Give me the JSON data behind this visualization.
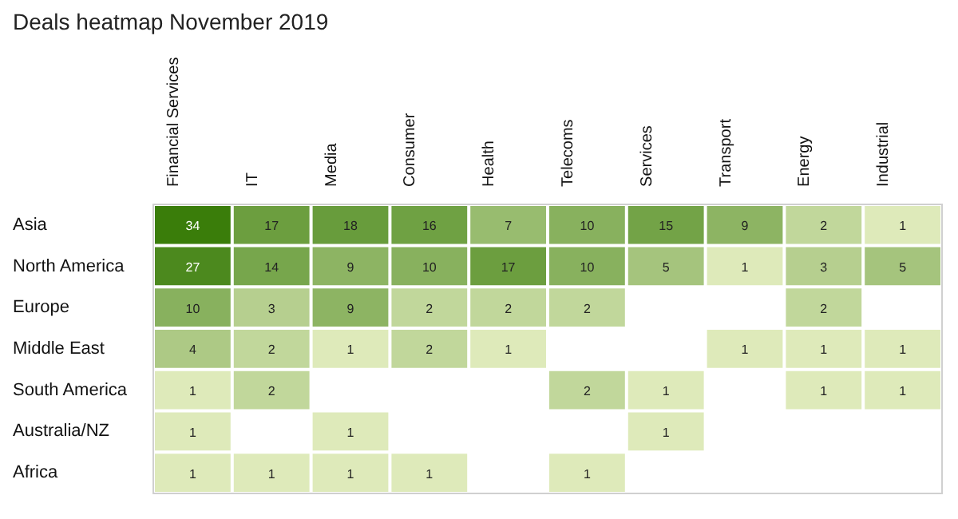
{
  "chart_data": {
    "type": "heatmap",
    "title": "Deals heatmap November 2019",
    "categories": [
      "Financial Services",
      "IT",
      "Media",
      "Consumer",
      "Health",
      "Telecoms",
      "Services",
      "Transport",
      "Energy",
      "Industrial"
    ],
    "y_categories": [
      "Asia",
      "North America",
      "Europe",
      "Middle East",
      "South America",
      "Australia/NZ",
      "Africa"
    ],
    "cells": [
      [
        34,
        17,
        18,
        16,
        7,
        10,
        15,
        9,
        2,
        1
      ],
      [
        27,
        14,
        9,
        10,
        17,
        10,
        5,
        1,
        3,
        5
      ],
      [
        10,
        3,
        9,
        2,
        2,
        2,
        null,
        null,
        2,
        null
      ],
      [
        4,
        2,
        1,
        2,
        1,
        null,
        null,
        1,
        1,
        1
      ],
      [
        1,
        2,
        null,
        null,
        null,
        2,
        1,
        null,
        1,
        1
      ],
      [
        1,
        null,
        1,
        null,
        null,
        null,
        1,
        null,
        null,
        null
      ],
      [
        1,
        1,
        1,
        1,
        null,
        1,
        null,
        null,
        null,
        null
      ]
    ],
    "data_labels": true
  }
}
